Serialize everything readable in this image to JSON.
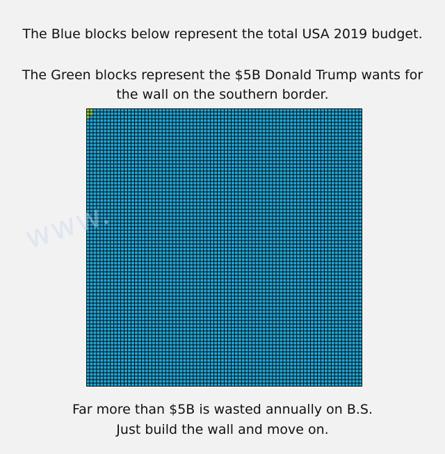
{
  "header": {
    "line1": "The Blue blocks below represent the total USA 2019 budget.",
    "line2": "The Green blocks represent the $5B Donald Trump wants for",
    "line3": "the wall on the southern border."
  },
  "footer": {
    "line1": "Far more than $5B is wasted annually on B.S.",
    "line2": "Just build the wall and move on."
  },
  "grid": {
    "columns": 80,
    "rows": 80,
    "green_blocks": 5,
    "blue_color": "#22a7d8",
    "green_color": "#8dc63f",
    "line_color": "#000000"
  }
}
